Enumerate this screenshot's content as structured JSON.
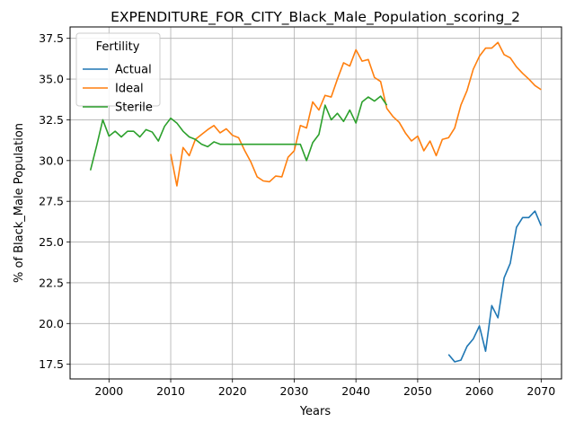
{
  "chart_data": {
    "type": "line",
    "title": "EXPENDITURE_FOR_CITY_Black_Male_Population_scoring_2",
    "xlabel": "Years",
    "ylabel": "% of Black_Male Population",
    "xlim": [
      1993.7,
      2073.3
    ],
    "ylim": [
      16.6,
      38.2
    ],
    "xticks": [
      2000,
      2010,
      2020,
      2030,
      2040,
      2050,
      2060,
      2070
    ],
    "yticks": [
      17.5,
      20.0,
      22.5,
      25.0,
      27.5,
      30.0,
      32.5,
      35.0,
      37.5
    ],
    "grid": true,
    "legend": {
      "title": "Fertility",
      "position": "upper-left"
    },
    "series": [
      {
        "name": "Actual",
        "color": "#1f77b4",
        "x": [
          2055,
          2056,
          2057,
          2058,
          2059,
          2060,
          2061,
          2062,
          2063,
          2064,
          2065,
          2066,
          2067,
          2068,
          2069,
          2070
        ],
        "y": [
          18.1,
          17.65,
          17.75,
          18.6,
          19.05,
          19.85,
          18.3,
          21.1,
          20.35,
          22.8,
          23.7,
          25.9,
          26.5,
          26.5,
          26.9,
          26.0
        ]
      },
      {
        "name": "Ideal",
        "color": "#ff7f0e",
        "x": [
          2010,
          2011,
          2012,
          2013,
          2014,
          2015,
          2016,
          2017,
          2018,
          2019,
          2020,
          2021,
          2022,
          2023,
          2024,
          2025,
          2026,
          2027,
          2028,
          2029,
          2030,
          2031,
          2032,
          2033,
          2034,
          2035,
          2036,
          2037,
          2038,
          2039,
          2040,
          2041,
          2042,
          2043,
          2044,
          2045,
          2046,
          2047,
          2048,
          2049,
          2050,
          2051,
          2052,
          2053,
          2054,
          2055,
          2056,
          2057,
          2058,
          2059,
          2060,
          2061,
          2062,
          2063,
          2064,
          2065,
          2066,
          2067,
          2068,
          2069,
          2070
        ],
        "y": [
          30.4,
          28.45,
          30.8,
          30.3,
          31.3,
          31.6,
          31.9,
          32.15,
          31.7,
          31.95,
          31.55,
          31.4,
          30.6,
          29.9,
          29.0,
          28.75,
          28.7,
          29.05,
          29.0,
          30.2,
          30.6,
          32.15,
          32.0,
          33.6,
          33.1,
          34.0,
          33.9,
          35.0,
          36.0,
          35.8,
          36.8,
          36.1,
          36.2,
          35.1,
          34.85,
          33.2,
          32.7,
          32.35,
          31.7,
          31.2,
          31.5,
          30.6,
          31.2,
          30.3,
          31.3,
          31.4,
          32.0,
          33.4,
          34.3,
          35.6,
          36.4,
          36.9,
          36.9,
          37.25,
          36.5,
          36.3,
          35.75,
          35.35,
          35.0,
          34.6,
          34.35
        ]
      },
      {
        "name": "Sterile",
        "color": "#2ca02c",
        "x": [
          1997,
          1998,
          1999,
          2000,
          2001,
          2002,
          2003,
          2004,
          2005,
          2006,
          2007,
          2008,
          2009,
          2010,
          2011,
          2012,
          2013,
          2014,
          2015,
          2016,
          2017,
          2018,
          2019,
          2020,
          2021,
          2022,
          2023,
          2024,
          2025,
          2026,
          2027,
          2028,
          2029,
          2030,
          2031,
          2032,
          2033,
          2034,
          2035,
          2036,
          2037,
          2038,
          2039,
          2040,
          2041,
          2042,
          2043,
          2044,
          2045
        ],
        "y": [
          29.4,
          30.9,
          32.5,
          31.5,
          31.8,
          31.45,
          31.8,
          31.8,
          31.45,
          31.9,
          31.75,
          31.2,
          32.1,
          32.6,
          32.3,
          31.8,
          31.45,
          31.3,
          31.0,
          30.85,
          31.15,
          31.0,
          31.0,
          31.0,
          31.0,
          31.0,
          31.0,
          31.0,
          31.0,
          31.0,
          31.0,
          31.0,
          31.0,
          31.0,
          31.0,
          30.0,
          31.1,
          31.6,
          33.4,
          32.5,
          32.9,
          32.4,
          33.1,
          32.3,
          33.6,
          33.9,
          33.65,
          33.95,
          33.4
        ]
      }
    ]
  }
}
